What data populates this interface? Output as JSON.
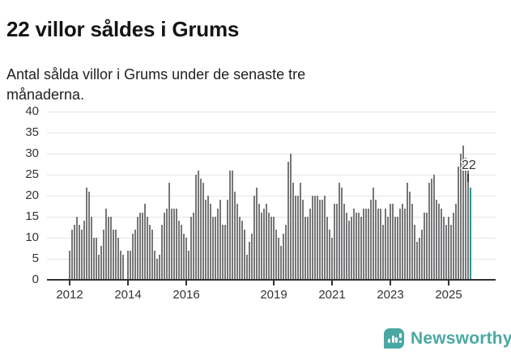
{
  "header": {
    "title": "22 villor såldes i Grums",
    "subtitle": "Antal sålda villor i Grums under de senaste tre månaderna."
  },
  "chart_data": {
    "type": "bar",
    "title": "22 villor såldes i Grums",
    "ylabel": "",
    "xlabel": "",
    "ylim": [
      0,
      40
    ],
    "grid": true,
    "y_ticks": [
      0,
      5,
      10,
      15,
      20,
      25,
      30,
      35,
      40
    ],
    "x_tick_labels": [
      "2012",
      "2014",
      "2016",
      "2019",
      "2021",
      "2023",
      "2025"
    ],
    "x_tick_month_index": [
      0,
      24,
      48,
      84,
      108,
      132,
      156
    ],
    "x_start": "2012-01",
    "x_end": "2025-10",
    "frequency": "monthly",
    "values": [
      7,
      12,
      13,
      15,
      13,
      12,
      14,
      22,
      21,
      15,
      10,
      10,
      6,
      8,
      12,
      17,
      15,
      15,
      12,
      12,
      10,
      7,
      6,
      0,
      7,
      7,
      11,
      12,
      15,
      16,
      16,
      18,
      15,
      13,
      12,
      7,
      5,
      6,
      13,
      16,
      17,
      23,
      17,
      17,
      17,
      14,
      13,
      11,
      10,
      7,
      15,
      16,
      25,
      26,
      24,
      23,
      19,
      20,
      18,
      15,
      15,
      17,
      19,
      13,
      13,
      19,
      26,
      26,
      21,
      18,
      15,
      14,
      12,
      6,
      9,
      11,
      20,
      22,
      18,
      16,
      17,
      18,
      16,
      15,
      15,
      12,
      10,
      8,
      11,
      13,
      28,
      30,
      23,
      20,
      20,
      23,
      19,
      15,
      15,
      17,
      20,
      20,
      20,
      19,
      19,
      20,
      15,
      12,
      10,
      18,
      18,
      23,
      22,
      18,
      16,
      14,
      15,
      17,
      16,
      16,
      15,
      17,
      17,
      17,
      19,
      22,
      19,
      17,
      17,
      13,
      17,
      15,
      18,
      18,
      15,
      15,
      17,
      18,
      17,
      23,
      21,
      18,
      13,
      9,
      10,
      12,
      16,
      16,
      23,
      24,
      25,
      19,
      18,
      17,
      15,
      13,
      15,
      13,
      16,
      18,
      27,
      30,
      32,
      29,
      26,
      22
    ],
    "annotation": {
      "text": "22",
      "value": 22
    },
    "bar_color": "#77777a",
    "highlight_color": "#00a09b",
    "legend_position": "none"
  },
  "footer": {
    "brand": "Newsworthy",
    "brand_color": "#4aa8a2"
  },
  "colors": {
    "text": "#141414",
    "axis_text": "#333333",
    "gridline": "#e4e4e4",
    "axis_line": "#333333",
    "background": "#ffffff"
  }
}
